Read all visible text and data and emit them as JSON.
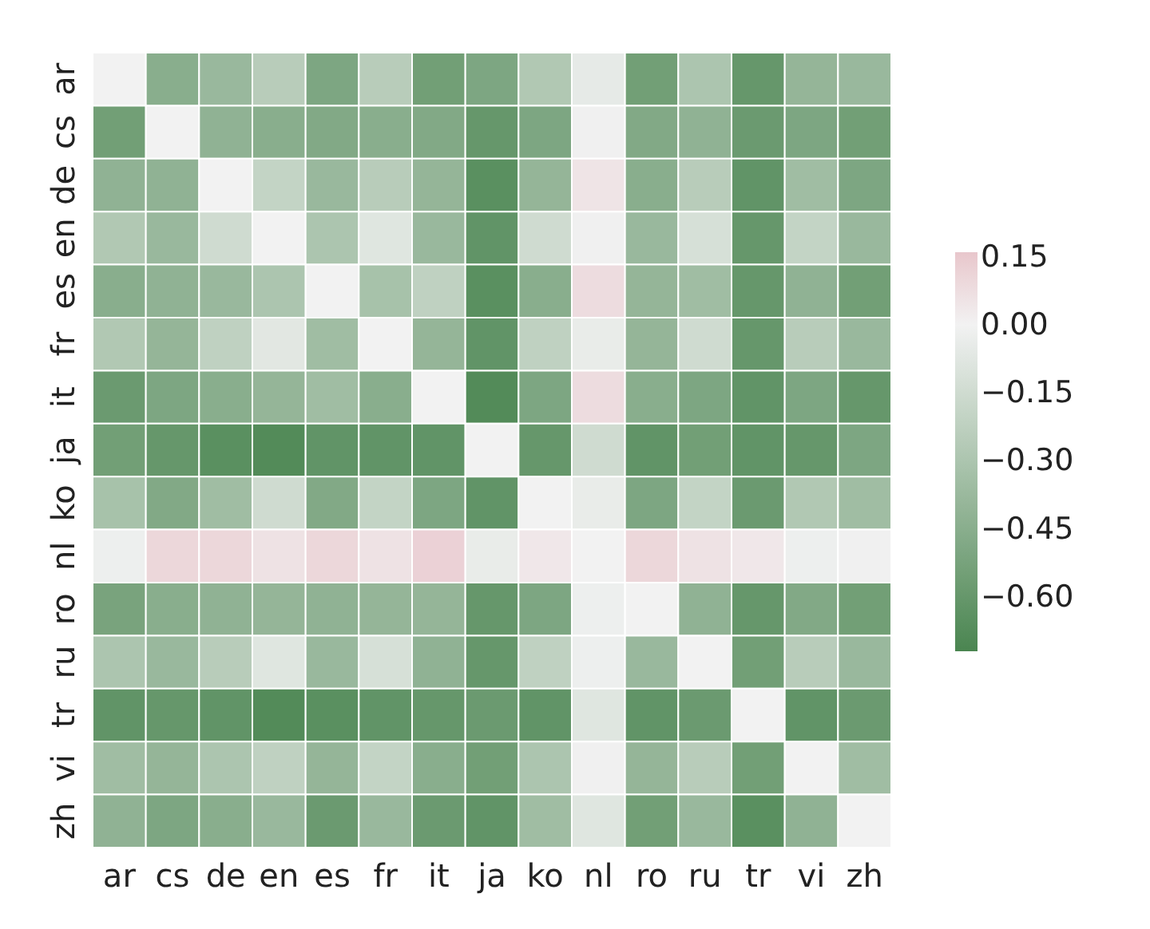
{
  "chart_data": {
    "type": "heatmap",
    "categories": [
      "ar",
      "cs",
      "de",
      "en",
      "es",
      "fr",
      "it",
      "ja",
      "ko",
      "nl",
      "ro",
      "ru",
      "tr",
      "vi",
      "zh"
    ],
    "y_categories": [
      "ar",
      "cs",
      "de",
      "en",
      "es",
      "fr",
      "it",
      "ja",
      "ko",
      "nl",
      "ro",
      "ru",
      "tr",
      "vi",
      "zh"
    ],
    "cells": [
      [
        0,
        -0.45,
        -0.38,
        -0.25,
        -0.5,
        -0.25,
        -0.55,
        -0.5,
        -0.28,
        -0.05,
        -0.55,
        -0.3,
        -0.6,
        -0.4,
        -0.38
      ],
      [
        -0.55,
        0,
        -0.42,
        -0.45,
        -0.48,
        -0.45,
        -0.48,
        -0.6,
        -0.5,
        -0.01,
        -0.48,
        -0.42,
        -0.58,
        -0.5,
        -0.55
      ],
      [
        -0.42,
        -0.42,
        0,
        -0.2,
        -0.38,
        -0.25,
        -0.4,
        -0.65,
        -0.4,
        0.05,
        -0.45,
        -0.25,
        -0.62,
        -0.35,
        -0.5
      ],
      [
        -0.28,
        -0.38,
        -0.15,
        0,
        -0.3,
        -0.08,
        -0.38,
        -0.62,
        -0.15,
        -0.01,
        -0.38,
        -0.12,
        -0.6,
        -0.2,
        -0.38
      ],
      [
        -0.45,
        -0.42,
        -0.38,
        -0.3,
        0,
        -0.32,
        -0.22,
        -0.65,
        -0.45,
        0.08,
        -0.4,
        -0.35,
        -0.6,
        -0.42,
        -0.55
      ],
      [
        -0.28,
        -0.4,
        -0.22,
        -0.07,
        -0.35,
        0,
        -0.4,
        -0.62,
        -0.22,
        -0.04,
        -0.4,
        -0.15,
        -0.6,
        -0.25,
        -0.38
      ],
      [
        -0.58,
        -0.5,
        -0.45,
        -0.4,
        -0.35,
        -0.45,
        0,
        -0.68,
        -0.5,
        0.08,
        -0.45,
        -0.5,
        -0.62,
        -0.5,
        -0.6
      ],
      [
        -0.55,
        -0.6,
        -0.65,
        -0.68,
        -0.62,
        -0.62,
        -0.62,
        0,
        -0.6,
        -0.15,
        -0.62,
        -0.55,
        -0.62,
        -0.6,
        -0.5
      ],
      [
        -0.32,
        -0.48,
        -0.35,
        -0.15,
        -0.48,
        -0.2,
        -0.5,
        -0.62,
        0,
        -0.04,
        -0.5,
        -0.2,
        -0.58,
        -0.28,
        -0.35
      ],
      [
        -0.02,
        0.1,
        0.1,
        0.06,
        0.1,
        0.06,
        0.12,
        -0.04,
        0.04,
        0,
        0.1,
        0.06,
        0.04,
        -0.02,
        -0.01
      ],
      [
        -0.52,
        -0.45,
        -0.42,
        -0.4,
        -0.42,
        -0.4,
        -0.4,
        -0.6,
        -0.5,
        -0.02,
        0,
        -0.42,
        -0.6,
        -0.48,
        -0.55
      ],
      [
        -0.3,
        -0.38,
        -0.25,
        -0.08,
        -0.38,
        -0.12,
        -0.42,
        -0.6,
        -0.22,
        -0.02,
        -0.38,
        0,
        -0.55,
        -0.25,
        -0.38
      ],
      [
        -0.62,
        -0.6,
        -0.62,
        -0.68,
        -0.65,
        -0.62,
        -0.6,
        -0.58,
        -0.62,
        -0.08,
        -0.62,
        -0.58,
        0,
        -0.62,
        -0.58
      ],
      [
        -0.35,
        -0.4,
        -0.3,
        -0.22,
        -0.4,
        -0.2,
        -0.45,
        -0.55,
        -0.3,
        -0.01,
        -0.4,
        -0.25,
        -0.55,
        0,
        -0.35
      ],
      [
        -0.42,
        -0.5,
        -0.45,
        -0.38,
        -0.58,
        -0.38,
        -0.58,
        -0.62,
        -0.35,
        -0.08,
        -0.55,
        -0.38,
        -0.65,
        -0.42,
        0
      ]
    ],
    "clim": [
      -0.72,
      0.16
    ],
    "cticks": [
      {
        "value": 0.15,
        "label": "0.15"
      },
      {
        "value": 0,
        "label": "0.00"
      },
      {
        "value": -0.15,
        "label": "−0.15"
      },
      {
        "value": -0.3,
        "label": "−0.30"
      },
      {
        "value": -0.45,
        "label": "−0.45"
      },
      {
        "value": -0.6,
        "label": "−0.60"
      }
    ]
  }
}
